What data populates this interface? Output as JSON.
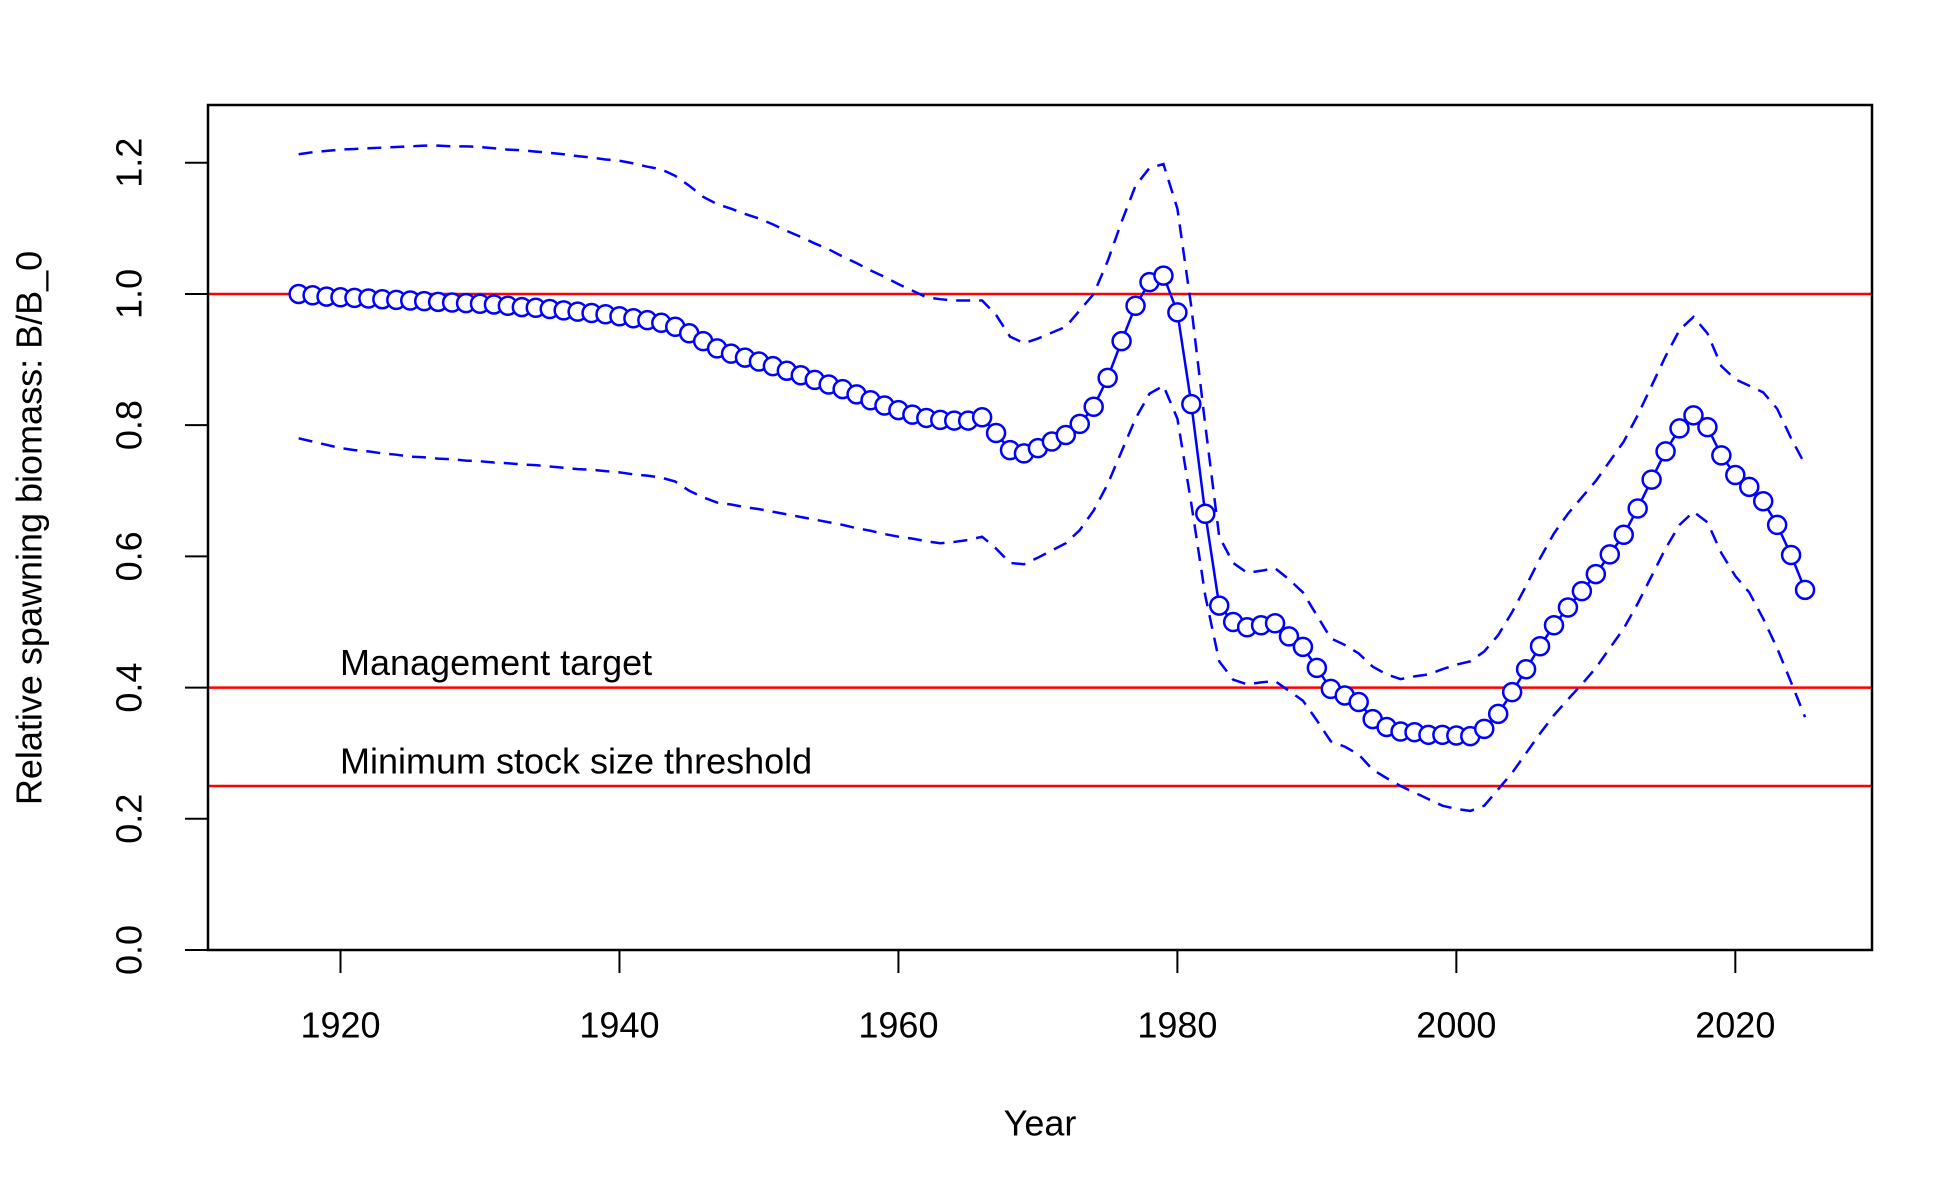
{
  "chart_data": {
    "type": "line",
    "xlabel": "Year",
    "ylabel": "Relative spawning biomass: B/B_0",
    "x": [
      1917,
      1918,
      1919,
      1920,
      1921,
      1922,
      1923,
      1924,
      1925,
      1926,
      1927,
      1928,
      1929,
      1930,
      1931,
      1932,
      1933,
      1934,
      1935,
      1936,
      1937,
      1938,
      1939,
      1940,
      1941,
      1942,
      1943,
      1944,
      1945,
      1946,
      1947,
      1948,
      1949,
      1950,
      1951,
      1952,
      1953,
      1954,
      1955,
      1956,
      1957,
      1958,
      1959,
      1960,
      1961,
      1962,
      1963,
      1964,
      1965,
      1966,
      1967,
      1968,
      1969,
      1970,
      1971,
      1972,
      1973,
      1974,
      1975,
      1976,
      1977,
      1978,
      1979,
      1980,
      1981,
      1982,
      1983,
      1984,
      1985,
      1986,
      1987,
      1988,
      1989,
      1990,
      1991,
      1992,
      1993,
      1994,
      1995,
      1996,
      1997,
      1998,
      1999,
      2000,
      2001,
      2002,
      2003,
      2004,
      2005,
      2006,
      2007,
      2008,
      2009,
      2010,
      2011,
      2012,
      2013,
      2014,
      2015,
      2016,
      2017,
      2018,
      2019,
      2020,
      2021,
      2022,
      2023,
      2024,
      2025
    ],
    "series": [
      {
        "color": "#0000ff",
        "line": "solid",
        "markers": true,
        "values": [
          1.0,
          0.998,
          0.996,
          0.995,
          0.994,
          0.993,
          0.992,
          0.991,
          0.99,
          0.989,
          0.988,
          0.987,
          0.986,
          0.985,
          0.984,
          0.982,
          0.98,
          0.979,
          0.977,
          0.975,
          0.973,
          0.971,
          0.969,
          0.966,
          0.963,
          0.96,
          0.956,
          0.95,
          0.94,
          0.928,
          0.917,
          0.909,
          0.903,
          0.897,
          0.89,
          0.883,
          0.876,
          0.869,
          0.862,
          0.855,
          0.847,
          0.838,
          0.83,
          0.823,
          0.816,
          0.811,
          0.808,
          0.807,
          0.807,
          0.812,
          0.788,
          0.762,
          0.757,
          0.765,
          0.775,
          0.785,
          0.802,
          0.828,
          0.872,
          0.928,
          0.982,
          1.018,
          1.028,
          0.972,
          0.832,
          0.665,
          0.525,
          0.5,
          0.492,
          0.495,
          0.498,
          0.478,
          0.462,
          0.43,
          0.398,
          0.388,
          0.378,
          0.352,
          0.34,
          0.333,
          0.332,
          0.328,
          0.328,
          0.327,
          0.326,
          0.337,
          0.36,
          0.393,
          0.428,
          0.463,
          0.495,
          0.522,
          0.547,
          0.573,
          0.603,
          0.633,
          0.673,
          0.717,
          0.76,
          0.795,
          0.815,
          0.797,
          0.754,
          0.724,
          0.706,
          0.684,
          0.648,
          0.602,
          0.549
        ]
      },
      {
        "color": "#0000ff",
        "line": "dashed",
        "markers": false,
        "values": [
          1.213,
          1.216,
          1.218,
          1.22,
          1.221,
          1.222,
          1.223,
          1.224,
          1.225,
          1.226,
          1.226,
          1.225,
          1.225,
          1.224,
          1.222,
          1.22,
          1.219,
          1.217,
          1.215,
          1.213,
          1.21,
          1.208,
          1.205,
          1.203,
          1.199,
          1.194,
          1.19,
          1.18,
          1.165,
          1.148,
          1.137,
          1.13,
          1.122,
          1.115,
          1.106,
          1.096,
          1.087,
          1.077,
          1.068,
          1.057,
          1.047,
          1.036,
          1.026,
          1.015,
          1.005,
          0.995,
          0.992,
          0.99,
          0.99,
          0.99,
          0.968,
          0.935,
          0.925,
          0.932,
          0.941,
          0.95,
          0.975,
          1.0,
          1.05,
          1.11,
          1.165,
          1.192,
          1.198,
          1.13,
          0.98,
          0.8,
          0.63,
          0.59,
          0.575,
          0.578,
          0.582,
          0.565,
          0.545,
          0.51,
          0.475,
          0.465,
          0.452,
          0.432,
          0.42,
          0.413,
          0.417,
          0.42,
          0.428,
          0.435,
          0.44,
          0.455,
          0.48,
          0.515,
          0.555,
          0.597,
          0.635,
          0.665,
          0.69,
          0.715,
          0.745,
          0.775,
          0.815,
          0.86,
          0.905,
          0.945,
          0.965,
          0.94,
          0.89,
          0.87,
          0.86,
          0.85,
          0.825,
          0.78,
          0.74
        ]
      },
      {
        "color": "#0000ff",
        "line": "dashed",
        "markers": false,
        "values": [
          0.78,
          0.775,
          0.77,
          0.765,
          0.762,
          0.76,
          0.757,
          0.755,
          0.752,
          0.751,
          0.749,
          0.748,
          0.746,
          0.745,
          0.743,
          0.742,
          0.74,
          0.739,
          0.737,
          0.735,
          0.733,
          0.732,
          0.73,
          0.728,
          0.725,
          0.723,
          0.72,
          0.714,
          0.7,
          0.69,
          0.682,
          0.679,
          0.675,
          0.672,
          0.668,
          0.664,
          0.66,
          0.656,
          0.652,
          0.648,
          0.643,
          0.639,
          0.634,
          0.63,
          0.627,
          0.623,
          0.62,
          0.622,
          0.625,
          0.63,
          0.612,
          0.59,
          0.588,
          0.598,
          0.609,
          0.62,
          0.64,
          0.67,
          0.71,
          0.76,
          0.81,
          0.848,
          0.86,
          0.81,
          0.68,
          0.54,
          0.44,
          0.412,
          0.405,
          0.408,
          0.41,
          0.395,
          0.38,
          0.35,
          0.318,
          0.31,
          0.298,
          0.275,
          0.262,
          0.25,
          0.24,
          0.23,
          0.22,
          0.215,
          0.212,
          0.22,
          0.245,
          0.27,
          0.3,
          0.33,
          0.358,
          0.382,
          0.405,
          0.43,
          0.46,
          0.49,
          0.528,
          0.57,
          0.612,
          0.648,
          0.668,
          0.652,
          0.605,
          0.57,
          0.545,
          0.505,
          0.46,
          0.408,
          0.355
        ]
      }
    ],
    "hlines": [
      {
        "value": 1.0,
        "color": "#ff0000"
      },
      {
        "value": 0.4,
        "color": "#ff0000",
        "label": "Management target"
      },
      {
        "value": 0.25,
        "color": "#ff0000",
        "label": "Minimum stock size threshold"
      }
    ],
    "xlim": [
      1910.5,
      2029.8
    ],
    "ylim": [
      0,
      1.288
    ],
    "xticks": [
      1920,
      1940,
      1960,
      1980,
      2000,
      2020
    ],
    "yticks": [
      {
        "value": 0,
        "label": "0.0"
      },
      0.2,
      0.4,
      0.6,
      0.8,
      {
        "value": 1,
        "label": "1.0"
      },
      1.2
    ],
    "grid": false
  }
}
